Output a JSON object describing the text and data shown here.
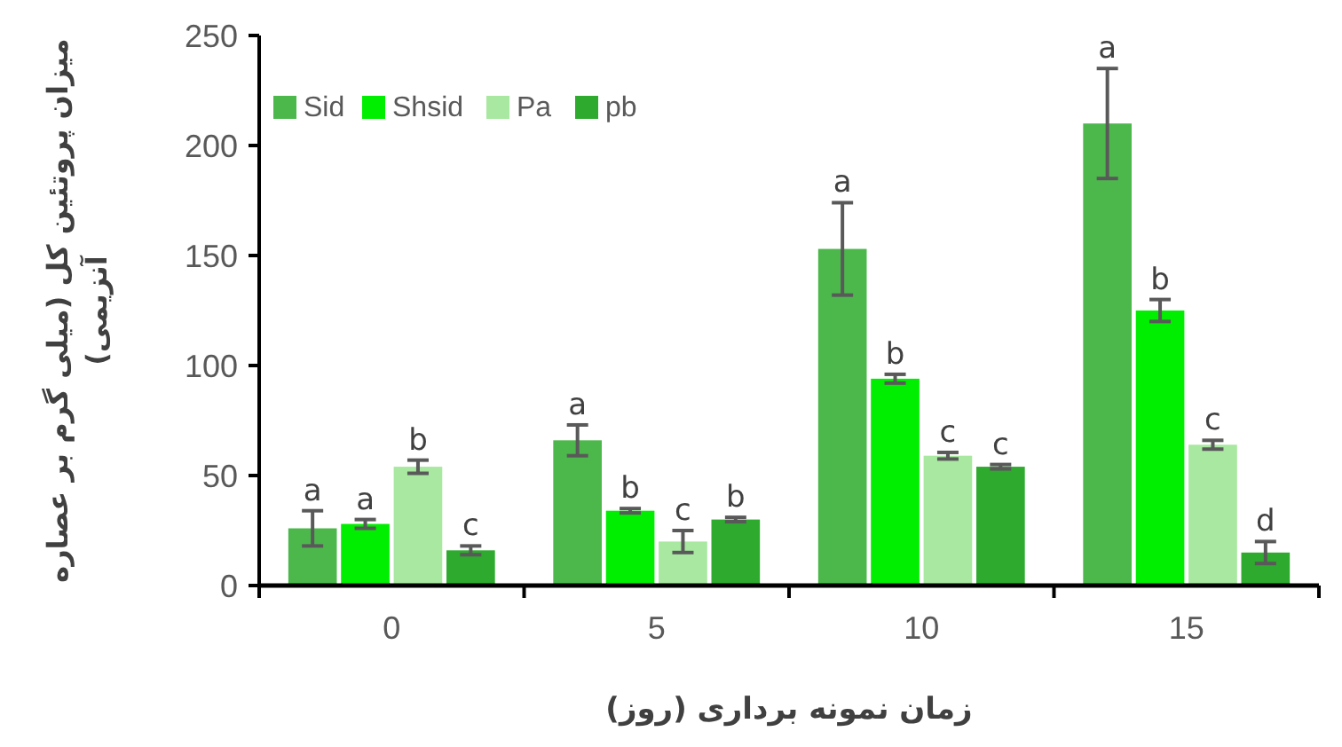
{
  "chart_data": {
    "type": "bar",
    "xlabel": "زمان نمونه برداری (روز)",
    "ylabel": "میزان پروتئین کل (میلی گرم بر عصاره آنزیمی)",
    "categories": [
      "0",
      "5",
      "10",
      "15"
    ],
    "series": [
      {
        "name": "Sid",
        "color": "#4cb84c",
        "values": [
          26,
          66,
          153,
          210
        ],
        "errors": [
          8,
          7,
          21,
          25
        ],
        "value_labels": [
          "a",
          "a",
          "a",
          "a"
        ]
      },
      {
        "name": "Shsid",
        "color": "#00ee00",
        "values": [
          28,
          34,
          94,
          125
        ],
        "errors": [
          2,
          1,
          2,
          5
        ],
        "value_labels": [
          "a",
          "b",
          "b",
          "b"
        ]
      },
      {
        "name": "Pa",
        "color": "#a8e8a0",
        "values": [
          54,
          20,
          59,
          64
        ],
        "errors": [
          3,
          5,
          1.5,
          2
        ],
        "value_labels": [
          "b",
          "c",
          "c",
          "c"
        ]
      },
      {
        "name": "pb",
        "color": "#2eaa2e",
        "values": [
          16,
          30,
          54,
          15
        ],
        "errors": [
          2,
          1,
          1,
          5
        ],
        "value_labels": [
          "c",
          "b",
          "c",
          "d"
        ]
      }
    ],
    "ylim": [
      0,
      250
    ],
    "yticks": [
      0,
      50,
      100,
      150,
      200,
      250
    ],
    "grid": false,
    "legend": "top left"
  }
}
